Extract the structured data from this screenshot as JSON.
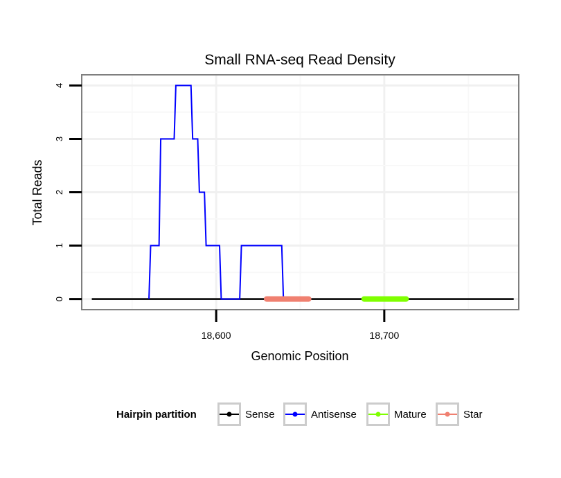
{
  "chart_data": {
    "type": "line",
    "title": "Small RNA-seq Read Density",
    "xlabel": "Genomic Position",
    "ylabel": "Total Reads",
    "xlim": [
      18520,
      18780
    ],
    "ylim": [
      -0.2,
      4.2
    ],
    "x_ticks": [
      18600,
      18700
    ],
    "x_tick_labels": [
      "18,600",
      "18,700"
    ],
    "y_ticks": [
      0,
      1,
      2,
      3,
      4
    ],
    "y_tick_labels": [
      "0",
      "1",
      "2",
      "3",
      "4"
    ],
    "grid": true,
    "legend_position": "bottom",
    "legend_title": "Hairpin partition",
    "series": [
      {
        "name": "Sense",
        "color": "#000000",
        "x": [
          18526,
          18777
        ],
        "y": [
          0,
          0
        ]
      },
      {
        "name": "Antisense",
        "color": "#0000FF",
        "x": [
          18560,
          18561,
          18566,
          18567,
          18575,
          18576,
          18585,
          18586,
          18589,
          18590,
          18593,
          18594,
          18602,
          18603,
          18614,
          18615,
          18639,
          18640
        ],
        "y": [
          0,
          1,
          1,
          3,
          3,
          4,
          4,
          3,
          3,
          2,
          2,
          1,
          1,
          0,
          0,
          1,
          1,
          0
        ]
      },
      {
        "name": "Mature",
        "color": "#7FFF00",
        "x": [
          18688,
          18713
        ],
        "y": [
          0,
          0
        ]
      },
      {
        "name": "Star",
        "color": "#F08070",
        "x": [
          18630,
          18655
        ],
        "y": [
          0,
          0
        ]
      }
    ]
  }
}
